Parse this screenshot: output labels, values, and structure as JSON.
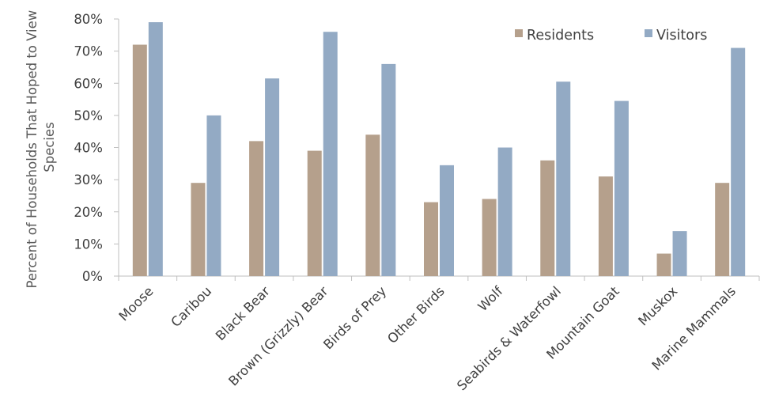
{
  "chart_data": {
    "type": "bar",
    "title": "",
    "xlabel": "",
    "ylabel": "Percent of Households That Hoped to View Species",
    "ylabel_lines": [
      "Percent of Households That Hoped to View",
      "Species"
    ],
    "ylim": [
      0,
      80
    ],
    "yticks": [
      "0%",
      "10%",
      "20%",
      "30%",
      "40%",
      "50%",
      "60%",
      "70%",
      "80%"
    ],
    "grid": false,
    "legend_position": "top-right",
    "categories": [
      "Moose",
      "Caribou",
      "Black Bear",
      "Brown (Grizzly) Bear",
      "Birds of Prey",
      "Other Birds",
      "Wolf",
      "Seabirds & Waterfowl",
      "Mountain Goat",
      "Muskox",
      "Marine Mammals"
    ],
    "series": [
      {
        "name": "Residents",
        "color": "#b5a08c",
        "values": [
          72,
          29,
          42,
          39,
          44,
          23,
          24,
          36,
          31,
          7,
          29
        ]
      },
      {
        "name": "Visitors",
        "color": "#93aac4",
        "values": [
          79,
          50,
          61.5,
          76,
          66,
          34.5,
          40,
          60.5,
          54.5,
          14,
          71
        ]
      }
    ]
  }
}
